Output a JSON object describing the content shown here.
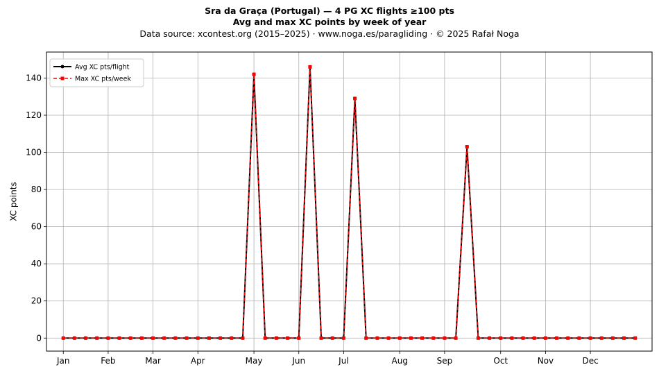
{
  "header": {
    "title": "Sra da Graça (Portugal)  —  4 PG XC flights ≥100 pts",
    "subtitle": "Avg and max XC points by week of year",
    "source": "Data source: xcontest.org (2015–2025)  ·  www.noga.es/paragliding  ·  © 2025 Rafał Noga"
  },
  "chart_data": {
    "type": "line",
    "title": "Sra da Graça (Portugal)  —  4 PG XC flights ≥100 pts",
    "subtitle": "Avg and max XC points by week of year",
    "xlabel": "",
    "ylabel": "XC points",
    "x": [
      1,
      2,
      3,
      4,
      5,
      6,
      7,
      8,
      9,
      10,
      11,
      12,
      13,
      14,
      15,
      16,
      17,
      18,
      19,
      20,
      21,
      22,
      23,
      24,
      25,
      26,
      27,
      28,
      29,
      30,
      31,
      32,
      33,
      34,
      35,
      36,
      37,
      38,
      39,
      40,
      41,
      42,
      43,
      44,
      45,
      46,
      47,
      48,
      49,
      50,
      51,
      52
    ],
    "xlim": [
      -0.5,
      53.5
    ],
    "ylim": [
      -7,
      154
    ],
    "yticks": [
      0,
      20,
      40,
      60,
      80,
      100,
      120,
      140
    ],
    "xticks": [
      {
        "label": "Jan",
        "x": 1
      },
      {
        "label": "Feb",
        "x": 5
      },
      {
        "label": "Mar",
        "x": 9
      },
      {
        "label": "Apr",
        "x": 13
      },
      {
        "label": "May",
        "x": 18
      },
      {
        "label": "Jun",
        "x": 22
      },
      {
        "label": "Jul",
        "x": 26
      },
      {
        "label": "Aug",
        "x": 31
      },
      {
        "label": "Sep",
        "x": 35
      },
      {
        "label": "Oct",
        "x": 40
      },
      {
        "label": "Nov",
        "x": 44
      },
      {
        "label": "Dec",
        "x": 48
      }
    ],
    "grid": true,
    "legend_position": "top-left",
    "series": [
      {
        "name": "Avg XC pts/flight",
        "color": "#000000",
        "marker": "circle",
        "style": "solid",
        "values": [
          0,
          0,
          0,
          0,
          0,
          0,
          0,
          0,
          0,
          0,
          0,
          0,
          0,
          0,
          0,
          0,
          0,
          142,
          0,
          0,
          0,
          0,
          146,
          0,
          0,
          0,
          129,
          0,
          0,
          0,
          0,
          0,
          0,
          0,
          0,
          0,
          103,
          0,
          0,
          0,
          0,
          0,
          0,
          0,
          0,
          0,
          0,
          0,
          0,
          0,
          0,
          0
        ]
      },
      {
        "name": "Max XC pts/week",
        "color": "#ff0000",
        "marker": "square",
        "style": "dashed",
        "values": [
          0,
          0,
          0,
          0,
          0,
          0,
          0,
          0,
          0,
          0,
          0,
          0,
          0,
          0,
          0,
          0,
          0,
          142,
          0,
          0,
          0,
          0,
          146,
          0,
          0,
          0,
          129,
          0,
          0,
          0,
          0,
          0,
          0,
          0,
          0,
          0,
          103,
          0,
          0,
          0,
          0,
          0,
          0,
          0,
          0,
          0,
          0,
          0,
          0,
          0,
          0,
          0
        ]
      }
    ]
  }
}
